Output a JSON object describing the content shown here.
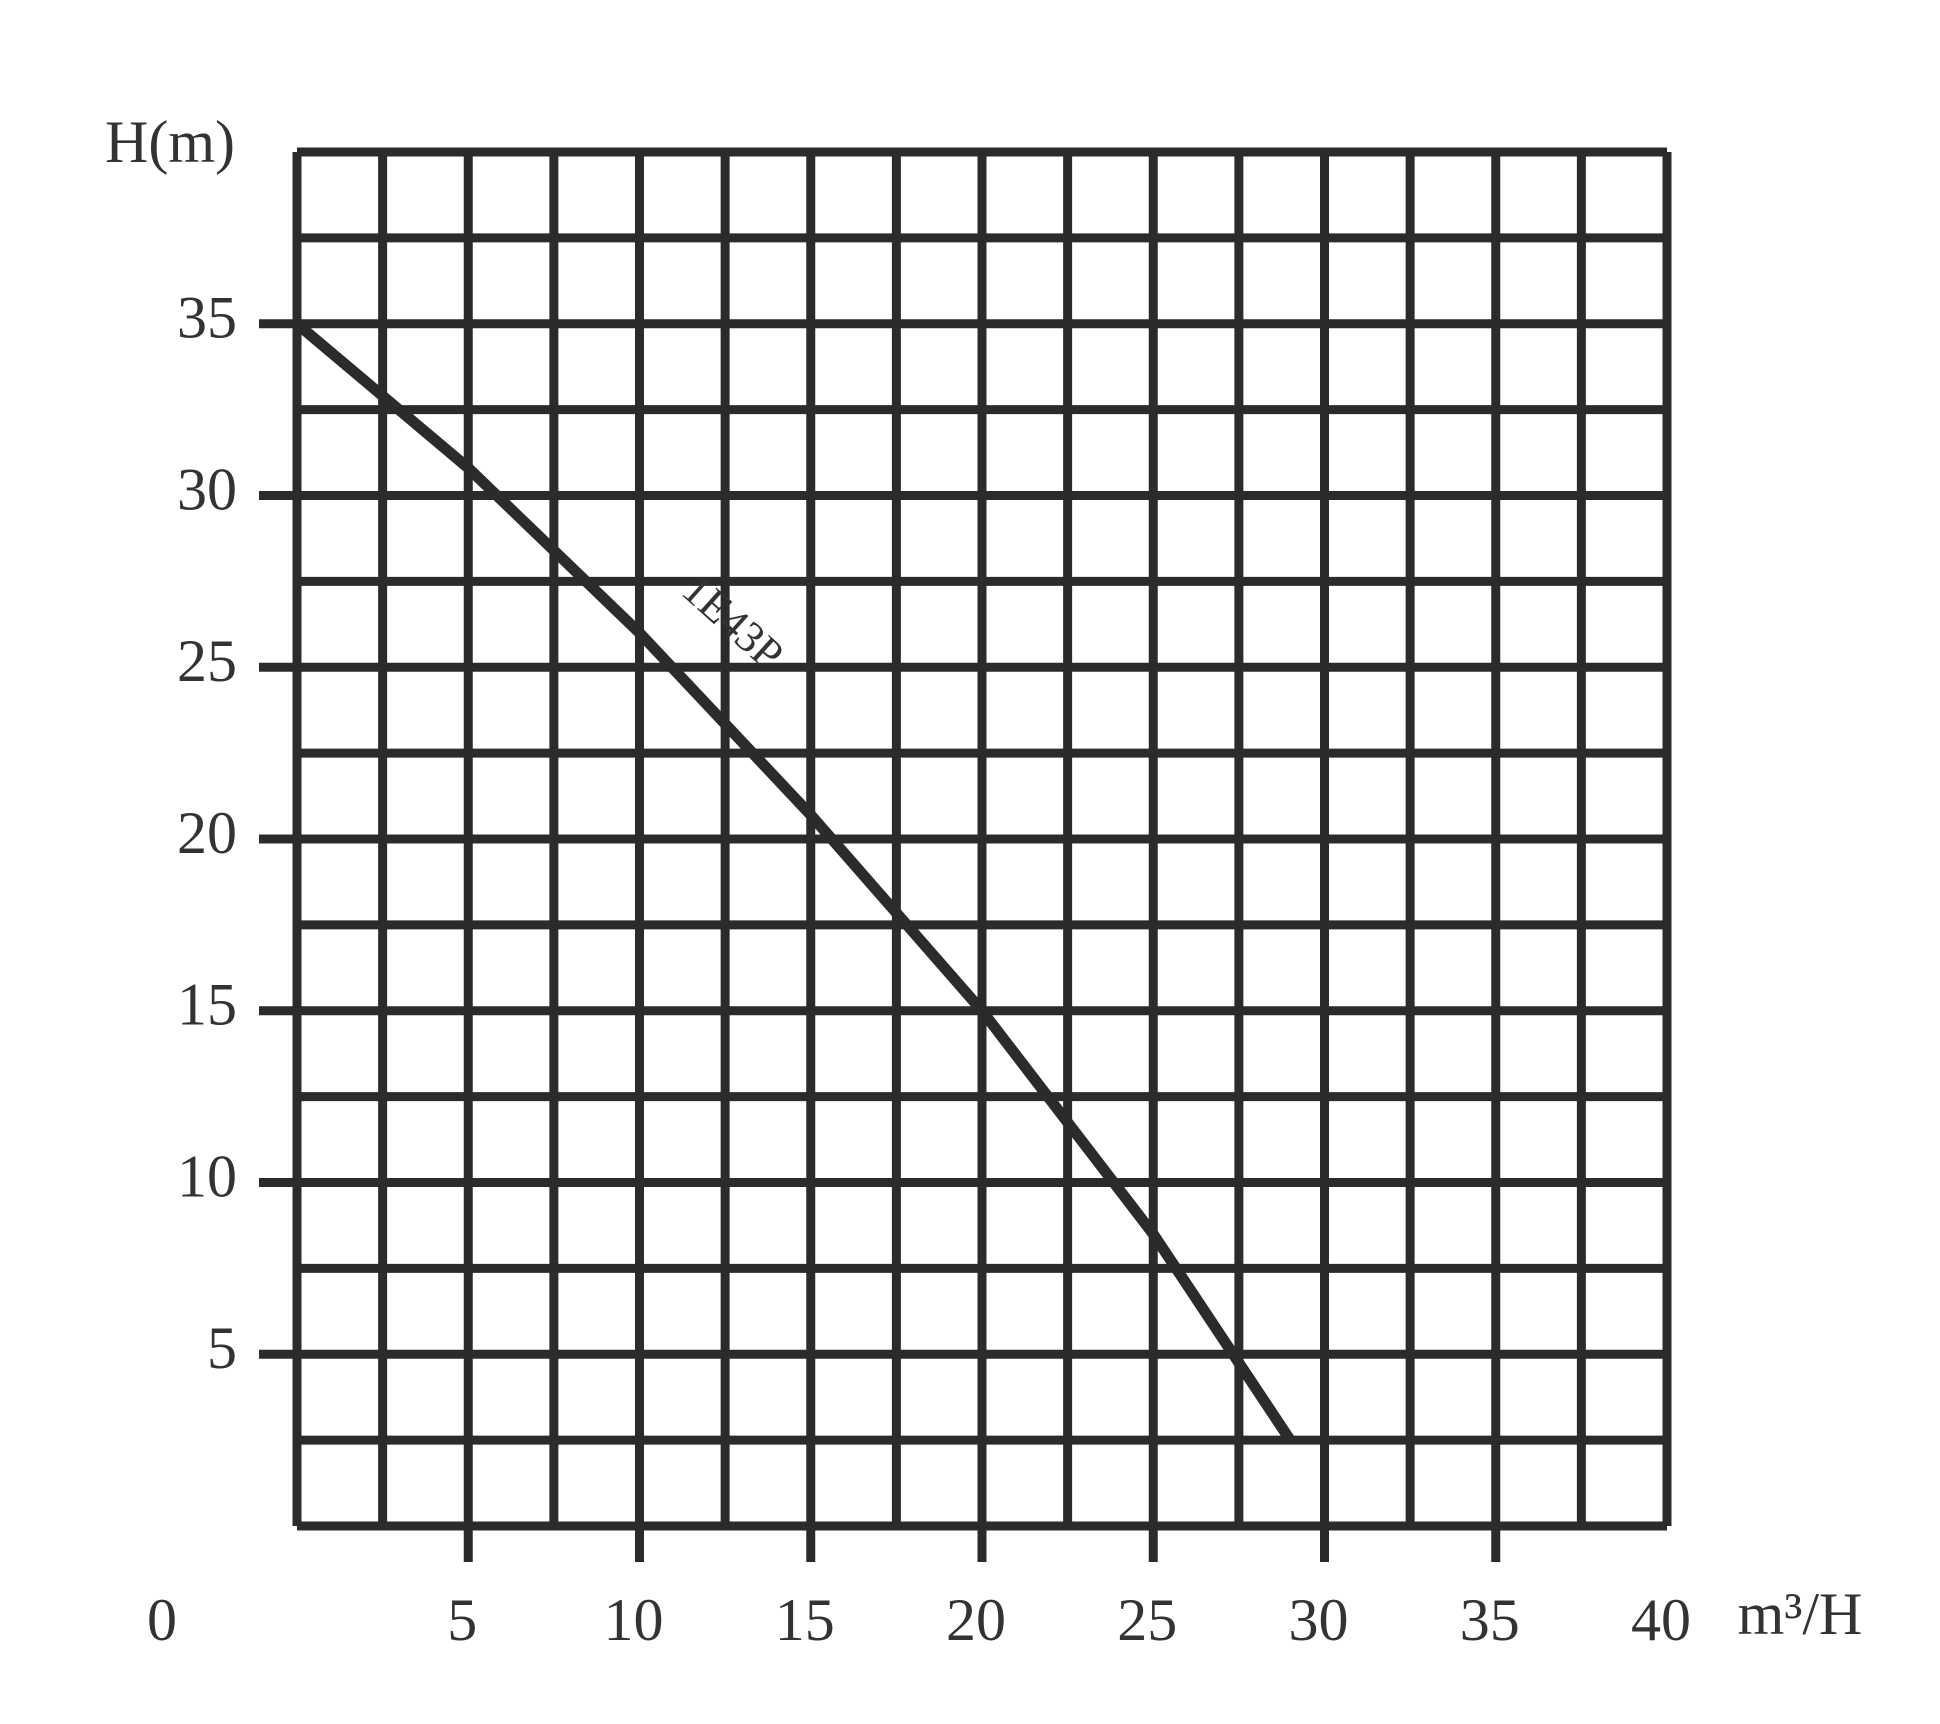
{
  "chart_data": {
    "type": "line",
    "ylabel": "H(m)",
    "xlabel": "m³/H",
    "annotation": "1E43P",
    "x": [
      0,
      5,
      10,
      15,
      20,
      25,
      29
    ],
    "series": [
      {
        "name": "1E43P",
        "color": "#2b2b2b",
        "values": [
          35,
          30.8,
          26,
          20.7,
          15,
          8.5,
          2.5
        ]
      }
    ],
    "xlim": [
      0,
      40
    ],
    "ylim": [
      0,
      40
    ],
    "xticks": [
      0,
      5,
      10,
      15,
      20,
      25,
      30,
      35,
      40
    ],
    "yticks": [
      5,
      10,
      15,
      20,
      25,
      30,
      35
    ],
    "grid": true
  }
}
